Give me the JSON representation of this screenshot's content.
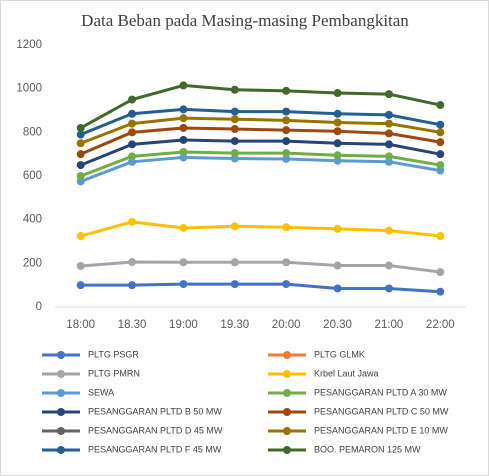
{
  "chart_data": {
    "type": "line",
    "title": "Data Beban pada Masing-masing Pembangkitan",
    "categories": [
      "18:00",
      "18.30",
      "19:00",
      "19.30",
      "20:00",
      "20.30",
      "21:00",
      "22:00"
    ],
    "ylim": [
      0,
      1200
    ],
    "yticks": [
      0,
      200,
      400,
      600,
      800,
      1000,
      1200
    ],
    "grid": false,
    "series": [
      {
        "name": "PLTG PSGR",
        "color": "#4472c4",
        "values": [
          100,
          100,
          105,
          105,
          105,
          85,
          85,
          70
        ]
      },
      {
        "name": "PLTG GLMK",
        "color": "#ed7d31",
        "values": [
          null,
          null,
          null,
          null,
          null,
          null,
          null,
          null
        ]
      },
      {
        "name": "PLTG PMRN",
        "color": "#a5a5a5",
        "values": [
          188,
          206,
          205,
          205,
          205,
          190,
          190,
          160
        ]
      },
      {
        "name": "Krbel Laut Jawa",
        "color": "#ffc000",
        "values": [
          325,
          390,
          362,
          370,
          365,
          358,
          350,
          325
        ]
      },
      {
        "name": "SEWA",
        "color": "#5b9bd5",
        "values": [
          575,
          665,
          685,
          680,
          678,
          670,
          665,
          625
        ]
      },
      {
        "name": "PESANGGARAN PLTD A  30 MW",
        "color": "#70ad47",
        "values": [
          600,
          690,
          710,
          705,
          705,
          695,
          690,
          650
        ]
      },
      {
        "name": "PESANGGARAN PLTD B 50 MW",
        "color": "#264478",
        "values": [
          650,
          745,
          765,
          760,
          760,
          750,
          745,
          700
        ]
      },
      {
        "name": "PESANGGARAN PLTD C 50 MW",
        "color": "#9e480e",
        "values": [
          700,
          800,
          820,
          815,
          810,
          805,
          795,
          755
        ]
      },
      {
        "name": "PESANGGARAN PLTD D 45 MW",
        "color": "#636363",
        "values": [
          null,
          null,
          null,
          null,
          null,
          null,
          null,
          null
        ]
      },
      {
        "name": "PESANGGARAN PLTD E 10 MW",
        "color": "#997300",
        "values": [
          750,
          840,
          865,
          860,
          855,
          845,
          840,
          800
        ]
      },
      {
        "name": "PESANGGARAN PLTD F 45 MW",
        "color": "#255e91",
        "values": [
          790,
          885,
          905,
          895,
          895,
          885,
          880,
          835
        ]
      },
      {
        "name": "BOO. PEMARON 125 MW",
        "color": "#43682b",
        "values": [
          820,
          950,
          1015,
          995,
          990,
          980,
          975,
          925
        ]
      }
    ]
  }
}
